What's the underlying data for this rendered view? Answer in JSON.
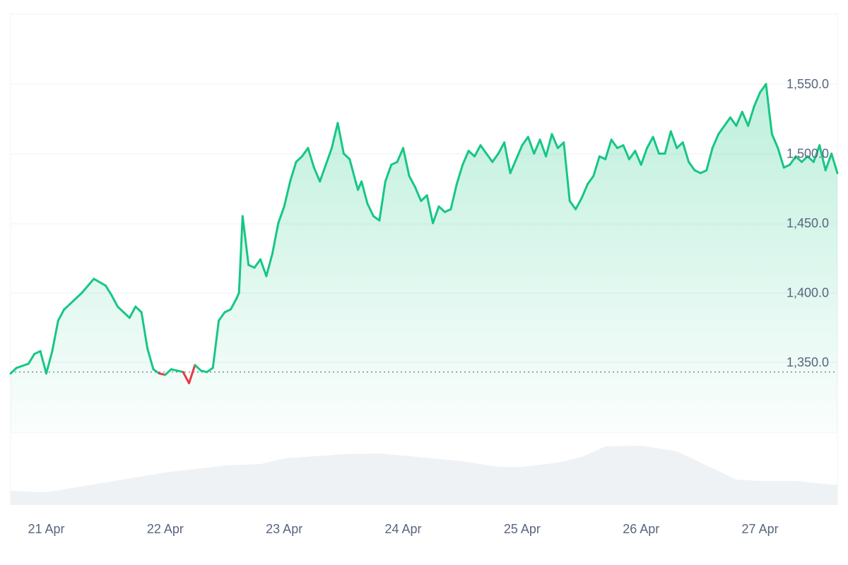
{
  "chart_data": {
    "type": "area",
    "title": "",
    "xlabel": "",
    "ylabel": "",
    "x_tick_labels": [
      "21 Apr",
      "22 Apr",
      "23 Apr",
      "24 Apr",
      "25 Apr",
      "26 Apr",
      "27 Apr"
    ],
    "y_tick_labels": [
      "1,350.0",
      "1,400.0",
      "1,450.0",
      "1,500.0",
      "1,550.0"
    ],
    "y_ticks": [
      1350,
      1400,
      1450,
      1500,
      1550
    ],
    "ylim": [
      1290,
      1600
    ],
    "x_range_days": [
      20.7,
      27.65
    ],
    "baseline": 1343,
    "grid": true,
    "colors": {
      "up": "#16c784",
      "down": "#ea3943",
      "fill_top": "#16c784",
      "volume": "#eff2f5",
      "grid": "#eff2f5",
      "baseline": "#58667e",
      "tick_text": "#58667e"
    },
    "price_series": {
      "x": [
        20.7,
        20.75,
        20.85,
        20.9,
        20.95,
        21.0,
        21.05,
        21.1,
        21.15,
        21.2,
        21.3,
        21.4,
        21.5,
        21.55,
        21.6,
        21.65,
        21.7,
        21.75,
        21.8,
        21.85,
        21.9,
        21.95,
        22.0,
        22.05,
        22.1,
        22.15,
        22.2,
        22.25,
        22.3,
        22.35,
        22.4,
        22.45,
        22.5,
        22.55,
        22.6,
        22.62,
        22.65,
        22.7,
        22.75,
        22.8,
        22.85,
        22.9,
        22.95,
        23.0,
        23.05,
        23.1,
        23.15,
        23.2,
        23.25,
        23.3,
        23.35,
        23.4,
        23.45,
        23.5,
        23.55,
        23.6,
        23.62,
        23.65,
        23.7,
        23.75,
        23.8,
        23.85,
        23.9,
        23.95,
        24.0,
        24.05,
        24.1,
        24.15,
        24.2,
        24.25,
        24.3,
        24.35,
        24.4,
        24.45,
        24.5,
        24.55,
        24.6,
        24.65,
        24.7,
        24.75,
        24.8,
        24.85,
        24.9,
        24.95,
        25.0,
        25.05,
        25.1,
        25.15,
        25.2,
        25.25,
        25.3,
        25.35,
        25.4,
        25.45,
        25.5,
        25.55,
        25.6,
        25.65,
        25.7,
        25.75,
        25.8,
        25.85,
        25.9,
        25.95,
        26.0,
        26.05,
        26.1,
        26.15,
        26.2,
        26.25,
        26.3,
        26.35,
        26.4,
        26.45,
        26.5,
        26.55,
        26.6,
        26.65,
        26.7,
        26.75,
        26.8,
        26.85,
        26.9,
        26.95,
        27.0,
        27.05,
        27.08,
        27.1,
        27.15,
        27.2,
        27.25,
        27.3,
        27.35,
        27.4,
        27.45,
        27.5,
        27.55,
        27.6,
        27.65
      ],
      "y": [
        1342,
        1346,
        1349,
        1356,
        1358,
        1342,
        1358,
        1380,
        1388,
        1392,
        1400,
        1410,
        1405,
        1398,
        1390,
        1386,
        1382,
        1390,
        1386,
        1360,
        1345,
        1342,
        1341,
        1345,
        1344,
        1343,
        1335,
        1348,
        1344,
        1343,
        1346,
        1380,
        1386,
        1388,
        1396,
        1400,
        1455,
        1420,
        1418,
        1424,
        1412,
        1428,
        1450,
        1462,
        1480,
        1494,
        1498,
        1504,
        1490,
        1480,
        1492,
        1504,
        1522,
        1500,
        1496,
        1480,
        1474,
        1480,
        1464,
        1455,
        1452,
        1480,
        1492,
        1494,
        1504,
        1484,
        1476,
        1466,
        1470,
        1450,
        1462,
        1458,
        1460,
        1478,
        1492,
        1502,
        1498,
        1506,
        1500,
        1494,
        1500,
        1508,
        1486,
        1496,
        1506,
        1512,
        1500,
        1510,
        1498,
        1514,
        1504,
        1508,
        1466,
        1460,
        1468,
        1478,
        1484,
        1498,
        1496,
        1510,
        1504,
        1506,
        1496,
        1502,
        1492,
        1504,
        1512,
        1500,
        1500,
        1516,
        1504,
        1508,
        1494,
        1488,
        1486,
        1488,
        1504,
        1514,
        1520,
        1526,
        1520,
        1530,
        1520,
        1534,
        1544,
        1550,
        1528,
        1514,
        1504,
        1490,
        1492,
        1498,
        1494,
        1498,
        1494,
        1506,
        1488,
        1500,
        1486
      ]
    },
    "volume_series": {
      "x": [
        20.7,
        21.0,
        21.5,
        22.0,
        22.5,
        22.8,
        23.0,
        23.5,
        23.8,
        24.0,
        24.5,
        24.8,
        25.0,
        25.3,
        25.5,
        25.7,
        26.0,
        26.3,
        26.5,
        26.8,
        27.0,
        27.3,
        27.65
      ],
      "v": [
        0.2,
        0.18,
        0.32,
        0.46,
        0.56,
        0.58,
        0.66,
        0.72,
        0.73,
        0.7,
        0.62,
        0.54,
        0.54,
        0.6,
        0.68,
        0.83,
        0.84,
        0.76,
        0.6,
        0.36,
        0.34,
        0.34,
        0.28
      ]
    }
  }
}
